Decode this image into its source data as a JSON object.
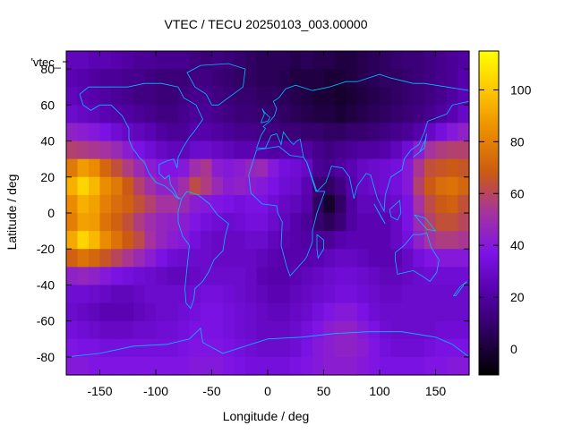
{
  "chart_data": {
    "type": "heatmap",
    "title": "VTEC / TECU 20250103_003.00000",
    "xlabel": "Longitude / deg",
    "ylabel": "Latitude / deg",
    "legend_key": "'vtec_",
    "xlim": [
      -180,
      180
    ],
    "ylim": [
      -90,
      90
    ],
    "x_ticks": [
      -150,
      -100,
      -50,
      0,
      50,
      100,
      150
    ],
    "y_ticks": [
      -80,
      -60,
      -40,
      -20,
      0,
      20,
      40,
      60,
      80
    ],
    "colorbar": {
      "range": [
        -10,
        115
      ],
      "ticks": [
        0,
        20,
        40,
        60,
        80,
        100
      ],
      "palette": [
        "#000000",
        "#2a0057",
        "#5400a8",
        "#7d13e8",
        "#a5339f",
        "#cb5b13",
        "#eb8b00",
        "#fdc400",
        "#ffff00"
      ]
    },
    "grid": false,
    "overlay": "coastlines",
    "overlay_color": "#00bfff",
    "grid_step": 10,
    "x": [
      -180,
      -170,
      -160,
      -150,
      -140,
      -130,
      -120,
      -110,
      -100,
      -90,
      -80,
      -70,
      -60,
      -50,
      -40,
      -30,
      -20,
      -10,
      0,
      10,
      20,
      30,
      40,
      50,
      60,
      70,
      80,
      90,
      100,
      110,
      120,
      130,
      140,
      150,
      160,
      170
    ],
    "y": [
      80,
      70,
      60,
      50,
      40,
      30,
      20,
      10,
      0,
      -10,
      -20,
      -30,
      -40,
      -50,
      -60,
      -70,
      -80,
      -90
    ],
    "vtec_tecu": [
      [
        26,
        26,
        24,
        24,
        22,
        20,
        18,
        18,
        16,
        16,
        16,
        14,
        12,
        14,
        12,
        10,
        8,
        6,
        6,
        6,
        4,
        6,
        4,
        4,
        2,
        2,
        4,
        6,
        8,
        10,
        12,
        12,
        14,
        16,
        18,
        20
      ],
      [
        24,
        22,
        20,
        18,
        18,
        16,
        16,
        14,
        12,
        12,
        12,
        14,
        14,
        12,
        10,
        8,
        8,
        6,
        6,
        4,
        2,
        2,
        2,
        0,
        0,
        2,
        4,
        6,
        8,
        8,
        10,
        12,
        14,
        16,
        18,
        22
      ],
      [
        26,
        24,
        22,
        20,
        18,
        16,
        14,
        14,
        12,
        12,
        14,
        16,
        16,
        14,
        12,
        10,
        10,
        8,
        8,
        6,
        4,
        2,
        0,
        0,
        -2,
        0,
        2,
        4,
        6,
        8,
        10,
        12,
        14,
        16,
        20,
        24
      ],
      [
        30,
        28,
        26,
        24,
        22,
        20,
        18,
        16,
        14,
        14,
        16,
        18,
        18,
        16,
        14,
        12,
        12,
        10,
        10,
        8,
        6,
        4,
        2,
        2,
        0,
        2,
        4,
        6,
        8,
        10,
        12,
        14,
        16,
        20,
        24,
        28
      ],
      [
        44,
        42,
        40,
        36,
        32,
        28,
        26,
        24,
        20,
        18,
        18,
        22,
        22,
        20,
        18,
        16,
        16,
        14,
        14,
        12,
        12,
        10,
        10,
        8,
        8,
        10,
        10,
        12,
        14,
        16,
        18,
        22,
        28,
        34,
        40,
        44
      ],
      [
        58,
        56,
        54,
        52,
        48,
        42,
        36,
        32,
        28,
        26,
        26,
        30,
        30,
        28,
        26,
        24,
        24,
        22,
        20,
        22,
        22,
        20,
        16,
        14,
        16,
        18,
        20,
        20,
        22,
        26,
        32,
        42,
        52,
        56,
        58,
        58
      ],
      [
        78,
        88,
        84,
        72,
        64,
        56,
        48,
        42,
        38,
        38,
        40,
        50,
        54,
        42,
        40,
        42,
        46,
        48,
        40,
        34,
        32,
        28,
        18,
        16,
        20,
        24,
        28,
        30,
        32,
        34,
        40,
        54,
        64,
        66,
        68,
        66
      ],
      [
        94,
        104,
        96,
        84,
        78,
        68,
        58,
        50,
        44,
        44,
        50,
        62,
        56,
        48,
        42,
        44,
        42,
        40,
        36,
        32,
        30,
        24,
        12,
        8,
        14,
        22,
        28,
        30,
        32,
        34,
        40,
        58,
        68,
        74,
        76,
        72
      ],
      [
        84,
        94,
        90,
        80,
        74,
        70,
        64,
        58,
        52,
        52,
        48,
        42,
        40,
        38,
        36,
        34,
        36,
        36,
        32,
        28,
        26,
        22,
        8,
        -2,
        8,
        20,
        26,
        26,
        28,
        30,
        36,
        52,
        62,
        68,
        70,
        64
      ],
      [
        80,
        90,
        88,
        76,
        70,
        64,
        56,
        50,
        46,
        44,
        42,
        38,
        34,
        32,
        30,
        32,
        34,
        34,
        30,
        26,
        22,
        18,
        10,
        6,
        12,
        20,
        24,
        24,
        24,
        28,
        36,
        48,
        58,
        64,
        64,
        60
      ],
      [
        92,
        104,
        96,
        84,
        76,
        68,
        62,
        52,
        46,
        42,
        40,
        34,
        30,
        28,
        28,
        28,
        30,
        30,
        26,
        24,
        22,
        20,
        18,
        18,
        22,
        24,
        24,
        24,
        24,
        28,
        34,
        44,
        52,
        56,
        56,
        54
      ],
      [
        70,
        76,
        72,
        66,
        60,
        54,
        48,
        42,
        36,
        32,
        30,
        30,
        30,
        28,
        28,
        28,
        28,
        26,
        24,
        22,
        22,
        22,
        24,
        26,
        28,
        28,
        26,
        24,
        24,
        24,
        28,
        34,
        38,
        40,
        40,
        40
      ],
      [
        44,
        46,
        44,
        40,
        36,
        34,
        32,
        30,
        28,
        26,
        26,
        28,
        30,
        30,
        30,
        30,
        28,
        24,
        22,
        22,
        24,
        26,
        28,
        30,
        32,
        32,
        30,
        28,
        26,
        26,
        28,
        30,
        32,
        32,
        32,
        32
      ],
      [
        32,
        32,
        30,
        28,
        26,
        26,
        28,
        30,
        30,
        30,
        30,
        32,
        34,
        34,
        32,
        30,
        28,
        26,
        24,
        24,
        26,
        28,
        30,
        32,
        34,
        34,
        32,
        30,
        28,
        28,
        30,
        30,
        30,
        30,
        30,
        30
      ],
      [
        30,
        28,
        26,
        24,
        24,
        24,
        26,
        28,
        30,
        30,
        32,
        34,
        36,
        36,
        34,
        32,
        30,
        28,
        26,
        26,
        28,
        30,
        34,
        38,
        40,
        40,
        36,
        32,
        30,
        30,
        30,
        30,
        30,
        30,
        30,
        30
      ],
      [
        34,
        32,
        30,
        28,
        28,
        28,
        30,
        30,
        32,
        32,
        34,
        36,
        36,
        36,
        34,
        32,
        30,
        28,
        28,
        28,
        30,
        34,
        38,
        42,
        44,
        44,
        40,
        36,
        32,
        30,
        30,
        30,
        30,
        32,
        32,
        32
      ],
      [
        38,
        36,
        36,
        34,
        34,
        34,
        34,
        34,
        34,
        34,
        36,
        38,
        38,
        38,
        36,
        34,
        32,
        30,
        30,
        30,
        32,
        36,
        40,
        42,
        44,
        44,
        42,
        38,
        34,
        32,
        32,
        32,
        34,
        36,
        36,
        36
      ],
      [
        40,
        40,
        38,
        38,
        38,
        38,
        38,
        38,
        38,
        38,
        38,
        40,
        40,
        40,
        38,
        36,
        34,
        34,
        34,
        34,
        36,
        38,
        40,
        42,
        42,
        42,
        40,
        38,
        36,
        36,
        36,
        36,
        38,
        38,
        40,
        40
      ]
    ]
  }
}
